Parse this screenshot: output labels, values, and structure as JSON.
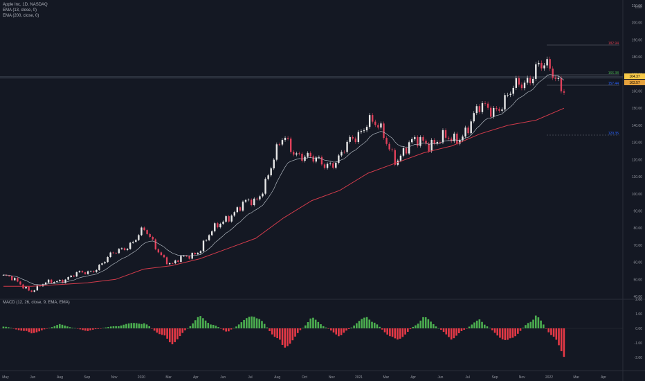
{
  "legend": {
    "symbol": "Apple Inc, 1D, NASDAQ",
    "ema_fast": "EMA (13, close, 0)",
    "ema_slow": "EMA (200, close, 0)"
  },
  "macd_legend": "MACD (12, 26, close, 9, EMA, EMA)",
  "price_axis": {
    "ticks": [
      "210.00",
      "200.00",
      "190.00",
      "180.00",
      "170.00",
      "160.00",
      "150.00",
      "140.00",
      "130.00",
      "120.00",
      "110.00",
      "100.00",
      "90.00",
      "80.00",
      "70.00",
      "60.00",
      "50.00",
      "40.00"
    ],
    "top_label": "USD",
    "badge_current": "164.37",
    "badge_ema": "163.57"
  },
  "macd_axis": {
    "ticks": [
      "2.00",
      "1.00",
      "0.00",
      "-1.00",
      "-2.00"
    ]
  },
  "time_axis": [
    "May",
    "Jun",
    "Aug",
    "Sep",
    "Nov",
    "2020",
    "Mar",
    "Apr",
    "Jun",
    "Jul",
    "Aug",
    "Oct",
    "Nov",
    "2021",
    "Mar",
    "Apr",
    "Jun",
    "Jul",
    "Sep",
    "Nov",
    "2022",
    "Mar",
    "Apr"
  ],
  "annotations": {
    "high": "182.94",
    "mid": "166.38",
    "low_mid": "157.44",
    "low": "129.35"
  },
  "colors": {
    "background": "#141823",
    "up": "#26a69a",
    "down": "#ef5350",
    "candle_up": "#e8e8e8",
    "candle_down": "#e0405a",
    "ema_fast": "#c9d1d9",
    "ema_slow": "#d23b4b",
    "macd_up": "#4caf50",
    "macd_down": "#e53946",
    "badge_current": "#f7c948",
    "badge_ema": "#e6a23c"
  },
  "chart_data": {
    "type": "line",
    "x": [
      "2019-05",
      "2019-06",
      "2019-08",
      "2019-09",
      "2019-11",
      "2020-01",
      "2020-03",
      "2020-04",
      "2020-06",
      "2020-07",
      "2020-08",
      "2020-10",
      "2020-11",
      "2021-01",
      "2021-03",
      "2021-04",
      "2021-06",
      "2021-07",
      "2021-09",
      "2021-11",
      "2022-01"
    ],
    "series": [
      {
        "name": "Apple Inc",
        "values": [
          52,
          44,
          50,
          54,
          65,
          78,
          58,
          68,
          88,
          96,
          132,
          118,
          120,
          145,
          122,
          132,
          130,
          148,
          155,
          175,
          165
        ]
      },
      {
        "name": "EMA (200, close, 0)",
        "values": [
          46,
          46,
          47,
          48,
          50,
          56,
          58,
          62,
          68,
          74,
          86,
          96,
          102,
          112,
          118,
          124,
          128,
          135,
          140,
          143,
          150
        ]
      }
    ],
    "ylim": [
      40,
      210
    ],
    "macd_histogram": [
      0.2,
      -0.4,
      0.3,
      -0.2,
      0.2,
      0.5,
      -1.2,
      0.9,
      -0.3,
      1.2,
      -1.6,
      0.8,
      -0.6,
      1.0,
      -1.1,
      0.9,
      -0.8,
      0.7,
      -1.2,
      1.1,
      -2.0
    ]
  }
}
